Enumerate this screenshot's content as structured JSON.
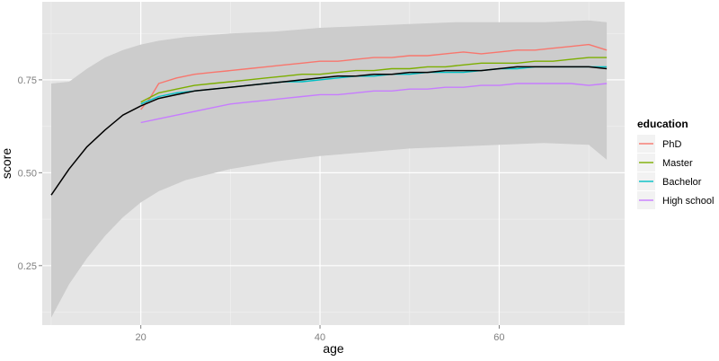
{
  "chart_data": {
    "type": "line",
    "xlabel": "age",
    "ylabel": "score",
    "xlim": [
      9,
      74
    ],
    "ylim": [
      0.09,
      0.96
    ],
    "x_ticks": [
      20,
      40,
      60
    ],
    "y_ticks": [
      0.25,
      0.5,
      0.75
    ],
    "x_tick_labels": [
      "20",
      "40",
      "60"
    ],
    "y_tick_labels": [
      "0.25",
      "0.50",
      "0.75"
    ],
    "grid": true,
    "legend_position": "right",
    "legend_title": "education",
    "band": {
      "x": [
        10,
        12,
        14,
        16,
        18,
        20,
        22,
        25,
        30,
        35,
        40,
        45,
        50,
        55,
        60,
        65,
        70,
        72
      ],
      "upper": [
        0.74,
        0.745,
        0.78,
        0.81,
        0.83,
        0.845,
        0.855,
        0.865,
        0.875,
        0.88,
        0.89,
        0.895,
        0.9,
        0.905,
        0.905,
        0.905,
        0.91,
        0.905
      ],
      "lower": [
        0.11,
        0.2,
        0.27,
        0.33,
        0.38,
        0.42,
        0.45,
        0.48,
        0.51,
        0.53,
        0.545,
        0.555,
        0.565,
        0.57,
        0.575,
        0.58,
        0.575,
        0.535
      ]
    },
    "base_line": {
      "x": [
        10,
        12,
        14,
        16,
        18,
        20
      ],
      "y": [
        0.44,
        0.51,
        0.57,
        0.615,
        0.655,
        0.68
      ]
    },
    "series": [
      {
        "name": "PhD",
        "color": "#f8766d",
        "x": [
          20,
          21,
          22,
          24,
          26,
          28,
          30,
          32,
          34,
          36,
          38,
          40,
          42,
          44,
          46,
          48,
          50,
          52,
          54,
          56,
          58,
          60,
          62,
          64,
          66,
          68,
          70,
          72
        ],
        "y": [
          0.67,
          0.7,
          0.74,
          0.755,
          0.765,
          0.77,
          0.775,
          0.78,
          0.785,
          0.79,
          0.795,
          0.8,
          0.8,
          0.805,
          0.81,
          0.81,
          0.815,
          0.815,
          0.82,
          0.825,
          0.82,
          0.825,
          0.83,
          0.83,
          0.835,
          0.84,
          0.845,
          0.83
        ]
      },
      {
        "name": "Master",
        "color": "#7cae00",
        "x": [
          20,
          22,
          24,
          26,
          28,
          30,
          32,
          34,
          36,
          38,
          40,
          42,
          44,
          46,
          48,
          50,
          52,
          54,
          56,
          58,
          60,
          62,
          64,
          66,
          68,
          70,
          72
        ],
        "y": [
          0.69,
          0.715,
          0.725,
          0.735,
          0.74,
          0.745,
          0.75,
          0.755,
          0.76,
          0.765,
          0.765,
          0.77,
          0.775,
          0.775,
          0.78,
          0.78,
          0.785,
          0.785,
          0.79,
          0.795,
          0.795,
          0.795,
          0.8,
          0.8,
          0.805,
          0.81,
          0.81
        ]
      },
      {
        "name": "Bachelor",
        "color": "#00bfc4",
        "x": [
          20,
          22,
          24,
          26,
          28,
          30,
          32,
          34,
          36,
          38,
          40,
          42,
          44,
          46,
          48,
          50,
          52,
          54,
          56,
          58,
          60,
          62,
          64,
          66,
          68,
          70,
          72
        ],
        "y": [
          0.685,
          0.705,
          0.715,
          0.72,
          0.725,
          0.73,
          0.735,
          0.74,
          0.745,
          0.745,
          0.75,
          0.755,
          0.76,
          0.76,
          0.765,
          0.765,
          0.77,
          0.77,
          0.77,
          0.775,
          0.78,
          0.78,
          0.785,
          0.785,
          0.785,
          0.785,
          0.785
        ]
      },
      {
        "name": "High school",
        "color": "#c77cff",
        "x": [
          20,
          22,
          24,
          26,
          28,
          30,
          32,
          34,
          36,
          38,
          40,
          42,
          44,
          46,
          48,
          50,
          52,
          54,
          56,
          58,
          60,
          62,
          64,
          66,
          68,
          70,
          72
        ],
        "y": [
          0.635,
          0.645,
          0.655,
          0.665,
          0.675,
          0.685,
          0.69,
          0.695,
          0.7,
          0.705,
          0.71,
          0.71,
          0.715,
          0.72,
          0.72,
          0.725,
          0.725,
          0.73,
          0.73,
          0.735,
          0.735,
          0.74,
          0.74,
          0.74,
          0.74,
          0.735,
          0.74
        ]
      }
    ],
    "combined_line": {
      "color": "#000000",
      "x": [
        20,
        22,
        24,
        26,
        28,
        30,
        32,
        34,
        36,
        38,
        40,
        42,
        44,
        46,
        48,
        50,
        52,
        54,
        56,
        58,
        60,
        62,
        64,
        66,
        68,
        70,
        72
      ],
      "y": [
        0.68,
        0.7,
        0.71,
        0.72,
        0.725,
        0.73,
        0.735,
        0.74,
        0.745,
        0.75,
        0.755,
        0.76,
        0.76,
        0.765,
        0.765,
        0.77,
        0.77,
        0.775,
        0.775,
        0.775,
        0.78,
        0.785,
        0.785,
        0.785,
        0.785,
        0.785,
        0.78
      ]
    },
    "colors": {
      "panel_background": "#e5e5e5",
      "grid_major": "#ffffff",
      "grid_minor": "#f2f2f2",
      "band_fill": "#cccccc",
      "legend_key_background": "#f2f2f2"
    }
  }
}
